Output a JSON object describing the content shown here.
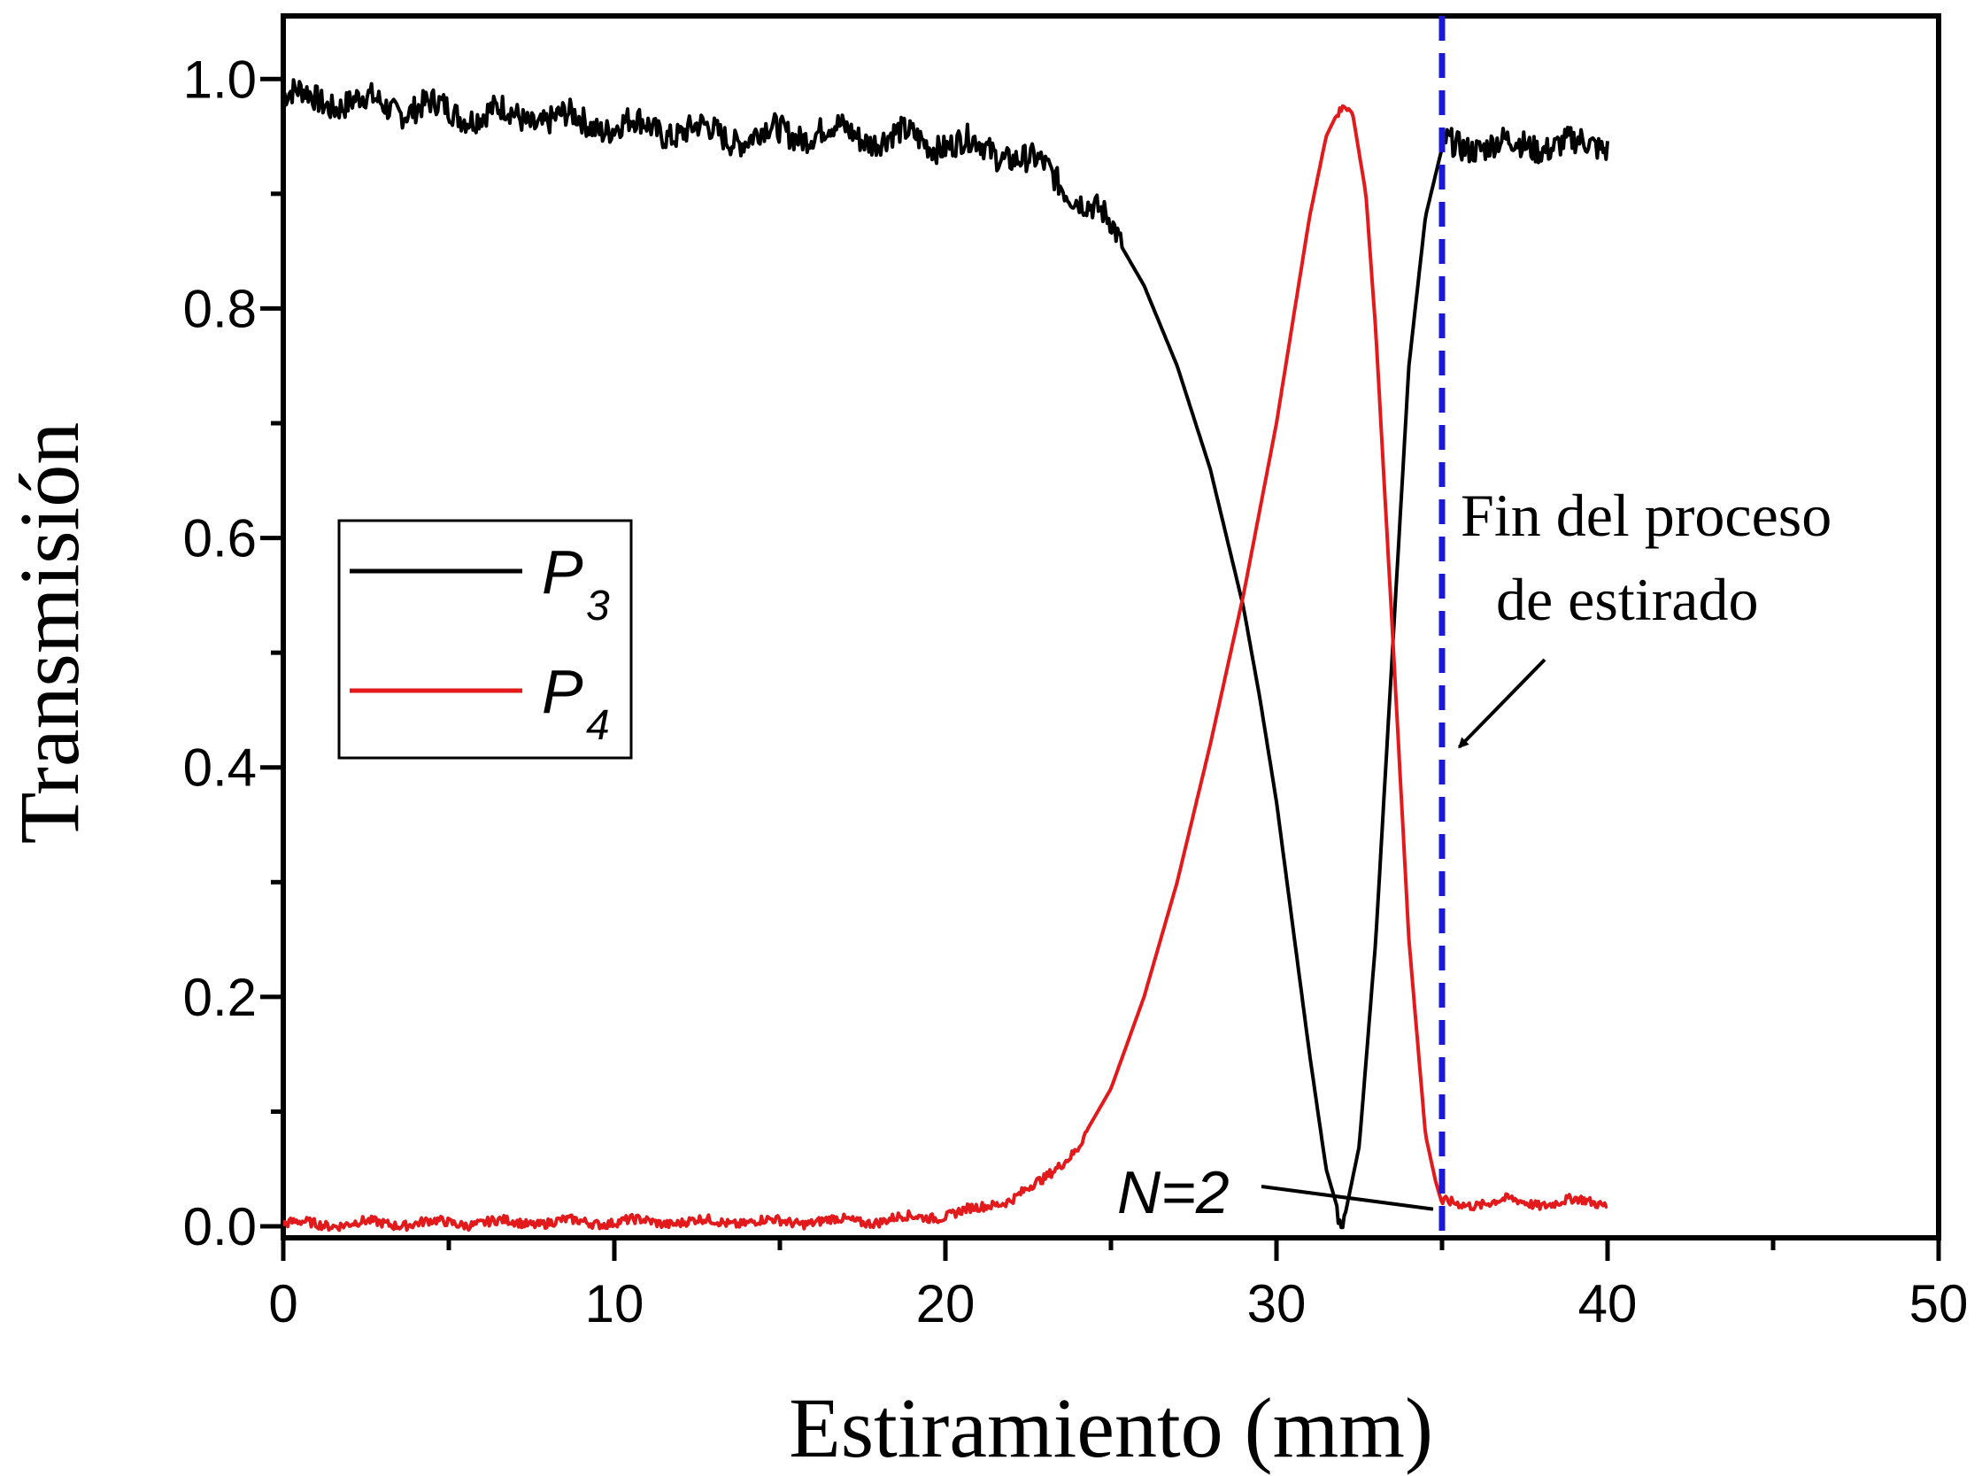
{
  "chart_data": {
    "type": "line",
    "title": "",
    "xlabel": "Estiramiento (mm)",
    "ylabel": "Transmisión",
    "xlim": [
      0,
      50
    ],
    "ylim": [
      -0.01,
      1.055
    ],
    "x_ticks": [
      0,
      10,
      20,
      30,
      40,
      50
    ],
    "x_tick_labels": [
      "0",
      "10",
      "20",
      "30",
      "40",
      "50"
    ],
    "y_ticks": [
      0.0,
      0.2,
      0.4,
      0.6,
      0.8,
      1.0
    ],
    "y_tick_labels": [
      "0.0",
      "0.2",
      "0.4",
      "0.6",
      "0.8",
      "1.0"
    ],
    "grid": false,
    "legend_position": "middle-left",
    "series": [
      {
        "name": "P",
        "subscript": "3",
        "color": "#000000",
        "x": [
          0,
          2,
          4,
          6,
          8,
          10,
          12,
          14,
          16,
          18,
          20,
          22,
          23,
          24,
          25,
          26,
          27,
          28,
          29,
          29.5,
          30,
          30.5,
          31,
          31.5,
          32,
          32.5,
          33,
          33.5,
          34,
          34.5,
          35,
          36,
          37,
          38,
          39,
          40
        ],
        "y": [
          0.985,
          0.98,
          0.975,
          0.97,
          0.965,
          0.96,
          0.955,
          0.95,
          0.955,
          0.95,
          0.945,
          0.935,
          0.92,
          0.9,
          0.87,
          0.82,
          0.75,
          0.66,
          0.54,
          0.46,
          0.37,
          0.26,
          0.15,
          0.05,
          0.0,
          0.07,
          0.25,
          0.5,
          0.75,
          0.88,
          0.94,
          0.945,
          0.94,
          0.945,
          0.94,
          0.945
        ],
        "noise": 0.012
      },
      {
        "name": "P",
        "subscript": "4",
        "color": "#e31a1c",
        "x": [
          0,
          5,
          10,
          15,
          18,
          20,
          21,
          22,
          23,
          24,
          25,
          26,
          27,
          28,
          29,
          30,
          30.5,
          31,
          31.5,
          32,
          32.3,
          32.7,
          33,
          33.5,
          34,
          34.5,
          34.8,
          35,
          36,
          37,
          38,
          39,
          40
        ],
        "y": [
          0.002,
          0.003,
          0.004,
          0.004,
          0.005,
          0.01,
          0.015,
          0.025,
          0.04,
          0.07,
          0.12,
          0.2,
          0.3,
          0.42,
          0.55,
          0.7,
          0.79,
          0.88,
          0.95,
          0.98,
          0.97,
          0.9,
          0.78,
          0.52,
          0.25,
          0.08,
          0.04,
          0.02,
          0.02,
          0.022,
          0.02,
          0.022,
          0.02
        ],
        "noise": 0.004
      }
    ],
    "vertical_line": {
      "x": 35,
      "color": "#1a1ad6",
      "style": "dashed"
    },
    "annotations": [
      {
        "text_lines": [
          "Fin del proceso",
          "de estirado"
        ],
        "arrow_to": {
          "x": 35.2,
          "y": 0.41
        }
      },
      {
        "text": "N=2",
        "arrow_to": {
          "x": 35,
          "y": 0.015
        }
      }
    ]
  }
}
